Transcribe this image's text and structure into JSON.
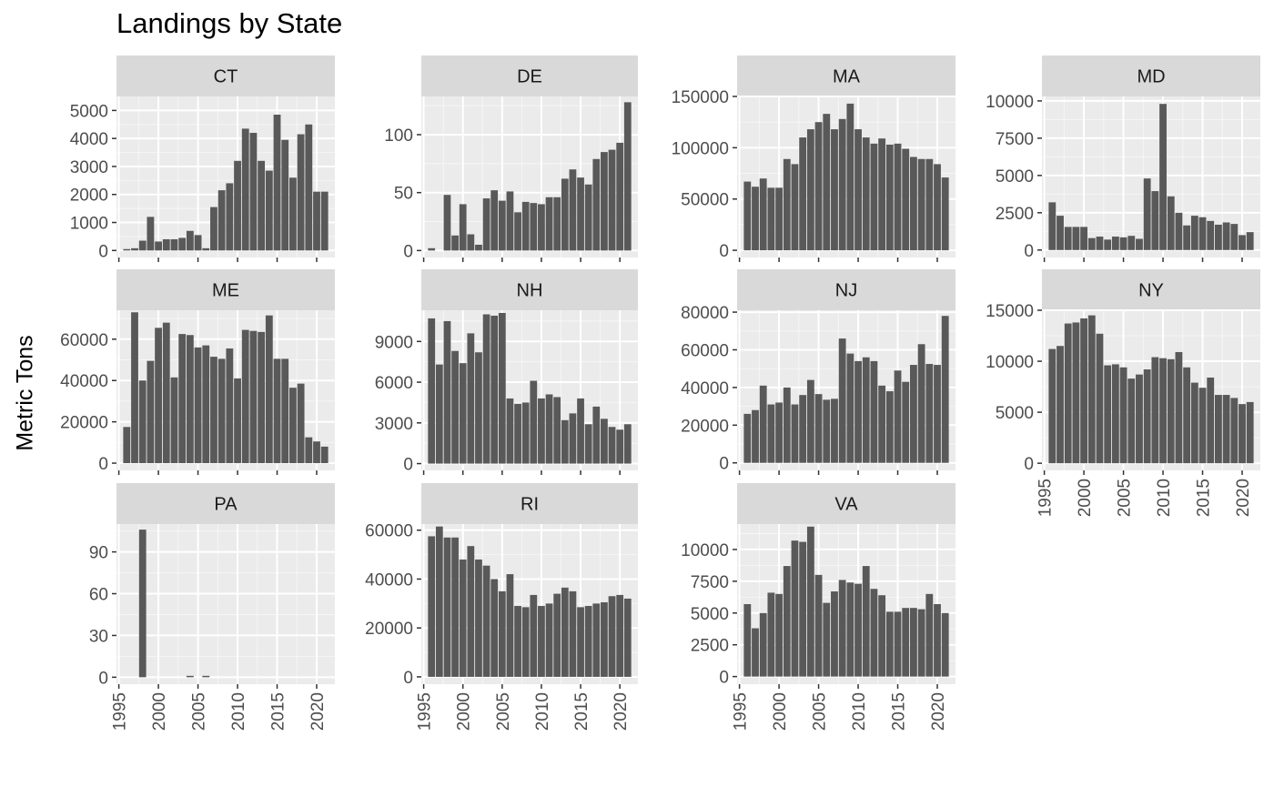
{
  "chart_data": {
    "type": "bar",
    "title": "Landings by State",
    "ylabel": "Metric Tons",
    "xlabel": "",
    "x": [
      1996,
      1997,
      1998,
      1999,
      2000,
      2001,
      2002,
      2003,
      2004,
      2005,
      2006,
      2007,
      2008,
      2009,
      2010,
      2011,
      2012,
      2013,
      2014,
      2015,
      2016,
      2017,
      2018,
      2019,
      2020,
      2021
    ],
    "x_ticks": [
      "1995",
      "2000",
      "2005",
      "2010",
      "2015",
      "2020"
    ],
    "xlim": [
      1994.7,
      2022.3
    ],
    "grid": true,
    "scales": "free_y",
    "facets": [
      {
        "label": "CT",
        "ylim": [
          -250,
          5500
        ],
        "y_ticks": [
          "0",
          "1000",
          "2000",
          "3000",
          "4000",
          "5000"
        ],
        "values": [
          50,
          80,
          350,
          1200,
          320,
          400,
          400,
          450,
          700,
          550,
          80,
          1550,
          2150,
          2400,
          3200,
          4350,
          4200,
          3200,
          2850,
          4850,
          3950,
          2600,
          4150,
          4500,
          2100,
          2100
        ]
      },
      {
        "label": "DE",
        "ylim": [
          -6,
          133
        ],
        "y_ticks": [
          "0",
          "50",
          "100"
        ],
        "values": [
          2,
          0,
          48,
          13,
          40,
          14,
          5,
          45,
          52,
          43,
          51,
          33,
          42,
          41,
          40,
          46,
          46,
          62,
          70,
          63,
          57,
          79,
          85,
          87,
          93,
          128
        ]
      },
      {
        "label": "MA",
        "ylim": [
          -7000,
          150000
        ],
        "y_ticks": [
          "0",
          "50000",
          "100000",
          "150000"
        ],
        "values": [
          67000,
          62000,
          70000,
          61000,
          61000,
          89000,
          84000,
          110000,
          118000,
          125000,
          133000,
          118000,
          128000,
          143000,
          118000,
          110000,
          104000,
          109000,
          103000,
          104000,
          99000,
          91000,
          89000,
          89000,
          84000,
          71000
        ]
      },
      {
        "label": "MD",
        "ylim": [
          -500,
          10300
        ],
        "y_ticks": [
          "0",
          "2500",
          "5000",
          "7500",
          "10000"
        ],
        "values": [
          3200,
          2300,
          1550,
          1550,
          1550,
          800,
          900,
          700,
          900,
          850,
          950,
          750,
          4800,
          3950,
          9800,
          3600,
          2500,
          1650,
          2300,
          2200,
          1950,
          1700,
          1850,
          1750,
          1000,
          1200
        ]
      },
      {
        "label": "ME",
        "ylim": [
          -3500,
          74000
        ],
        "y_ticks": [
          "0",
          "20000",
          "40000",
          "60000"
        ],
        "values": [
          17500,
          73000,
          40000,
          49500,
          65500,
          68000,
          41500,
          62500,
          62000,
          56000,
          57000,
          51500,
          50500,
          55500,
          41000,
          64500,
          64000,
          63500,
          71500,
          50500,
          50500,
          36500,
          38500,
          12500,
          10500,
          8000
        ]
      },
      {
        "label": "NH",
        "ylim": [
          -500,
          11300
        ],
        "y_ticks": [
          "0",
          "3000",
          "6000",
          "9000"
        ],
        "values": [
          10700,
          7300,
          10500,
          8300,
          7400,
          9600,
          8200,
          11000,
          10900,
          11100,
          4800,
          4400,
          4500,
          6100,
          4800,
          5100,
          4900,
          3200,
          3700,
          4800,
          2900,
          4200,
          3300,
          2700,
          2500,
          2900
        ]
      },
      {
        "label": "NJ",
        "ylim": [
          -4000,
          81000
        ],
        "y_ticks": [
          "0",
          "20000",
          "40000",
          "60000",
          "80000"
        ],
        "values": [
          26000,
          28000,
          41000,
          31000,
          32000,
          40000,
          31000,
          36000,
          44000,
          36500,
          33500,
          34000,
          66000,
          58000,
          54000,
          56000,
          54000,
          41000,
          38000,
          49000,
          43000,
          52000,
          63000,
          52500,
          52000,
          78000
        ]
      },
      {
        "label": "NY",
        "ylim": [
          -700,
          15000
        ],
        "y_ticks": [
          "0",
          "5000",
          "10000",
          "15000"
        ],
        "values": [
          11200,
          11500,
          13700,
          13800,
          14200,
          14500,
          12700,
          9600,
          9700,
          9400,
          8300,
          8700,
          9200,
          10400,
          10300,
          10200,
          10900,
          9400,
          7900,
          7400,
          8400,
          6700,
          6700,
          6400,
          5800,
          6000
        ]
      },
      {
        "label": "PA",
        "ylim": [
          -5,
          110
        ],
        "y_ticks": [
          "0",
          "30",
          "60",
          "90"
        ],
        "values": [
          0,
          0,
          106,
          0,
          0,
          0,
          0,
          0,
          1,
          0,
          1,
          0,
          0,
          0,
          0,
          0,
          0,
          0,
          0,
          0,
          0,
          0,
          0,
          0,
          0,
          0
        ]
      },
      {
        "label": "RI",
        "ylim": [
          -3000,
          62500
        ],
        "y_ticks": [
          "0",
          "20000",
          "40000",
          "60000"
        ],
        "values": [
          57500,
          61500,
          57000,
          57000,
          48000,
          53500,
          48000,
          45500,
          40000,
          35000,
          42000,
          29000,
          28500,
          33500,
          29000,
          30000,
          34000,
          36500,
          35000,
          28500,
          29000,
          30000,
          30500,
          33000,
          33500,
          32000
        ]
      },
      {
        "label": "VA",
        "ylim": [
          -600,
          12000
        ],
        "y_ticks": [
          "0",
          "2500",
          "5000",
          "7500",
          "10000"
        ],
        "values": [
          5700,
          3800,
          5000,
          6600,
          6500,
          8700,
          10700,
          10600,
          11800,
          8000,
          5800,
          6700,
          7600,
          7400,
          7300,
          8700,
          6900,
          6400,
          5100,
          5100,
          5400,
          5400,
          5300,
          6500,
          5700,
          5000
        ]
      }
    ]
  },
  "colors": {
    "bar": "#595959",
    "panel_background": "#ebebeb",
    "strip_background": "#d9d9d9",
    "grid_major": "#ffffff",
    "tick_text": "#4d4d4d",
    "strip_text": "#1a1a1a"
  }
}
